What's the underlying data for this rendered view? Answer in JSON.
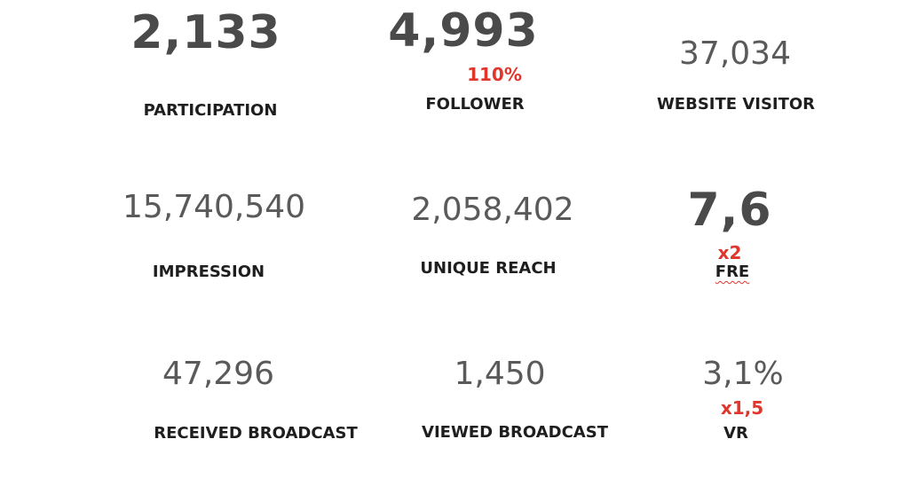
{
  "metrics": [
    {
      "value": "2,133",
      "label": "PARTICIPATION"
    },
    {
      "value": "4,993",
      "note": "110%",
      "label": "FOLLOWER"
    },
    {
      "value": "37,034",
      "label": "WEBSITE VISITOR"
    },
    {
      "value": "15,740,540",
      "label": "IMPRESSION"
    },
    {
      "value": "2,058,402",
      "label": "UNIQUE REACH"
    },
    {
      "value": "7,6",
      "note": "x2",
      "label": "FRE"
    },
    {
      "value": "47,296",
      "label": "RECEIVED BROADCAST"
    },
    {
      "value": "1,450",
      "label": "VIEWED BROADCAST"
    },
    {
      "value": "3,1%",
      "note": "x1,5",
      "label": "VR"
    }
  ]
}
